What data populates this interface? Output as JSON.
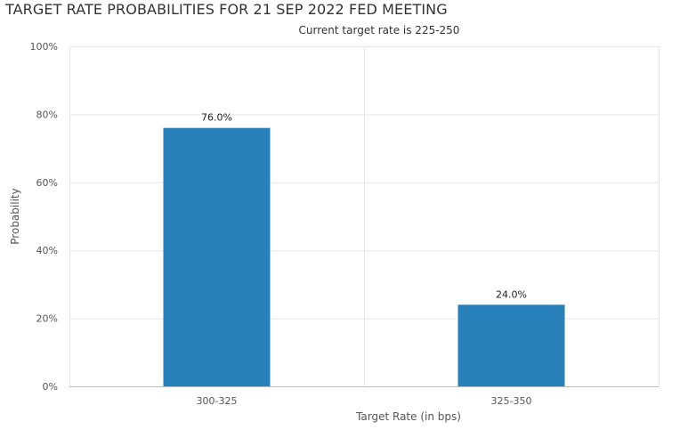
{
  "chart_data": {
    "type": "bar",
    "title": "TARGET RATE PROBABILITIES FOR 21 SEP 2022 FED MEETING",
    "subtitle": "Current target rate is 225-250",
    "xlabel": "Target Rate (in bps)",
    "ylabel": "Probability",
    "categories": [
      "300-325",
      "325-350"
    ],
    "values": [
      76.0,
      24.0
    ],
    "data_labels": [
      "76.0%",
      "24.0%"
    ],
    "ylim": [
      0,
      100
    ],
    "yticks": [
      0,
      20,
      40,
      60,
      80,
      100
    ],
    "ytick_labels": [
      "0%",
      "20%",
      "40%",
      "60%",
      "80%",
      "100%"
    ],
    "grid": true,
    "bar_color": "#2a80b9"
  }
}
